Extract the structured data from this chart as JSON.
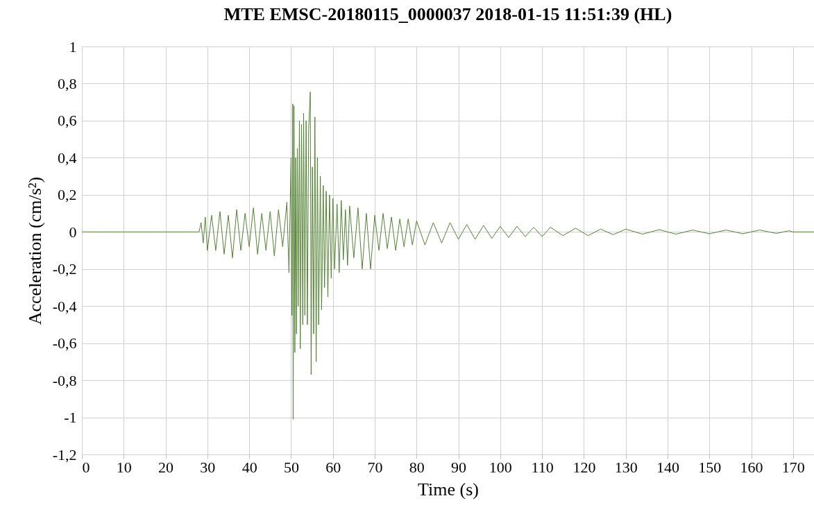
{
  "chart_data": {
    "type": "line",
    "title": "MTE EMSC-20180115_0000037 2018-01-15 11:51:39 (HL)",
    "xlabel": "Time (s)",
    "ylabel": "Acceleration (cm/s²)",
    "x": [
      0,
      5,
      28,
      28.5,
      29,
      29.5,
      30,
      31,
      32,
      33,
      34,
      35,
      36,
      37,
      38,
      39,
      40,
      41,
      42,
      43,
      44,
      45,
      46,
      47,
      48,
      49,
      49.5,
      50,
      50.2,
      50.4,
      50.5,
      50.7,
      50.9,
      51.1,
      51.3,
      51.5,
      51.7,
      52,
      52.2,
      52.5,
      52.8,
      53,
      53.3,
      53.6,
      53.9,
      54.2,
      54.6,
      54.8,
      55.1,
      55.4,
      55.7,
      56,
      56.3,
      56.6,
      57,
      57.3,
      57.7,
      58,
      58.4,
      58.8,
      59.2,
      59.6,
      60,
      60.4,
      61,
      61.5,
      62,
      62.5,
      63,
      63.5,
      64,
      65,
      66,
      67,
      68,
      69,
      70,
      71,
      72,
      73,
      74,
      75,
      76,
      77,
      78,
      79,
      80,
      82,
      84,
      86,
      88,
      90,
      92,
      94,
      96,
      98,
      100,
      102,
      104,
      106,
      108,
      110,
      112,
      115,
      118,
      121,
      124,
      127,
      130,
      134,
      138,
      142,
      146,
      150,
      154,
      158,
      162,
      166,
      169,
      170,
      175
    ],
    "series": [
      {
        "color": "#548235",
        "values": [
          0,
          0,
          0,
          0.05,
          -0.06,
          0.08,
          -0.1,
          0.09,
          -0.1,
          0.11,
          -0.12,
          0.09,
          -0.14,
          0.12,
          -0.1,
          0.1,
          -0.08,
          0.13,
          -0.12,
          0.1,
          -0.1,
          0.11,
          -0.13,
          0.12,
          -0.08,
          0.16,
          -0.22,
          0.4,
          -0.45,
          0.69,
          -1.01,
          0.68,
          -0.65,
          0.4,
          -0.55,
          0.45,
          -0.4,
          0.6,
          -0.63,
          0.58,
          -0.5,
          0.64,
          -0.45,
          0.6,
          -0.5,
          0.55,
          0.755,
          -0.77,
          0.35,
          -0.55,
          0.62,
          -0.7,
          0.4,
          -0.5,
          0.3,
          -0.42,
          0.25,
          -0.3,
          0.22,
          -0.35,
          0.2,
          -0.25,
          0.18,
          -0.2,
          0.15,
          -0.22,
          0.17,
          -0.15,
          0.12,
          -0.18,
          0.14,
          -0.14,
          0.13,
          -0.2,
          0.1,
          -0.2,
          0.09,
          -0.1,
          0.1,
          -0.09,
          0.08,
          -0.1,
          0.07,
          -0.08,
          0.07,
          -0.07,
          0.06,
          -0.07,
          0.05,
          -0.06,
          0.05,
          -0.04,
          0.04,
          -0.04,
          0.035,
          -0.035,
          0.03,
          -0.03,
          0.03,
          -0.025,
          0.025,
          -0.025,
          0.025,
          -0.02,
          0.02,
          -0.02,
          0.015,
          -0.015,
          0.015,
          -0.012,
          0.012,
          -0.012,
          0.01,
          -0.01,
          0.01,
          -0.01,
          0.01,
          -0.008,
          0.006,
          0,
          0
        ]
      }
    ],
    "xlim": [
      0,
      175
    ],
    "xticks": [
      0,
      10,
      20,
      30,
      40,
      50,
      60,
      70,
      80,
      90,
      100,
      110,
      120,
      130,
      140,
      150,
      160,
      170
    ],
    "ylim": [
      -1.2,
      1
    ],
    "yticks": [
      {
        "value": -1.2,
        "label": "-1,2"
      },
      -1,
      {
        "value": -0.8,
        "label": "-0,8"
      },
      {
        "value": -0.6,
        "label": "-0,6"
      },
      {
        "value": -0.4,
        "label": "-0,4"
      },
      {
        "value": -0.2,
        "label": "-0,2"
      },
      0,
      {
        "value": 0.2,
        "label": "0,2"
      },
      {
        "value": 0.4,
        "label": "0,4"
      },
      {
        "value": 0.6,
        "label": "0,6"
      },
      {
        "value": 0.8,
        "label": "0,8"
      },
      1
    ],
    "grid": true,
    "marker": "none",
    "line_style": "solid",
    "legend": false
  }
}
